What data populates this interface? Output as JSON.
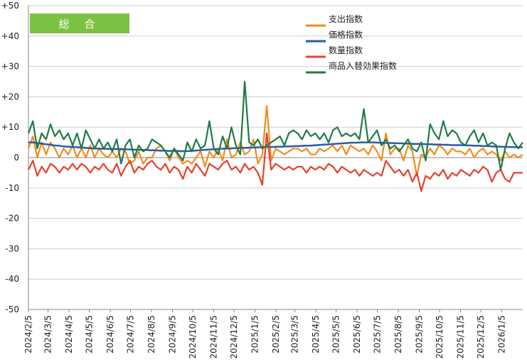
{
  "badge": {
    "label": "総 合",
    "color": "#7cc242"
  },
  "chart_data": {
    "type": "line",
    "title": "",
    "xlabel": "",
    "ylabel": "",
    "ylim": [
      -50,
      50
    ],
    "y_ticks": [
      "+50",
      "+40",
      "+30",
      "+20",
      "+10",
      "0",
      "-10",
      "-20",
      "-30",
      "-40",
      "-50"
    ],
    "x_tick_labels": [
      "2024/2/5",
      "2024/3/5",
      "2024/4/5",
      "2024/5/5",
      "2024/6/5",
      "2024/7/5",
      "2024/8/5",
      "2024/9/5",
      "2024/10/5",
      "2024/11/5",
      "2024/12/5",
      "2025/1/5",
      "2025/2/5",
      "2025/3/5",
      "2025/4/5",
      "2025/5/5",
      "2025/6/5",
      "2025/7/5",
      "2025/8/5",
      "2025/9/5",
      "2025/10/5",
      "2025/11/5",
      "2025/12/5",
      "2026/1/5"
    ],
    "x_start": "2024-02-05",
    "x_end": "2026-02-05",
    "grid": "horizontal",
    "legend_position": "top-right",
    "series": [
      {
        "name": "支出指数",
        "color": "#f28c1e",
        "values": [
          3,
          7,
          0,
          5,
          1,
          5,
          3,
          0,
          3,
          1,
          4,
          0,
          3,
          0,
          4,
          0,
          3,
          1,
          0,
          2,
          0,
          3,
          2,
          -2,
          -1,
          2,
          -2,
          0,
          0,
          3,
          4,
          2,
          -1,
          3,
          0,
          -2,
          -1,
          -2,
          0,
          2,
          -3,
          2,
          0,
          3,
          -1,
          6,
          0,
          1,
          5,
          1,
          2,
          6,
          -2,
          1,
          17,
          -1,
          3,
          2,
          1,
          2,
          3,
          3,
          2,
          3,
          1,
          1,
          3,
          2,
          3,
          4,
          2,
          4,
          1,
          4,
          3,
          2,
          3,
          1,
          4,
          2,
          -1,
          8,
          1,
          3,
          3,
          -1,
          4,
          2,
          -6,
          1,
          0,
          3,
          1,
          4,
          3,
          1,
          3,
          2,
          2,
          1,
          3,
          0,
          2,
          3,
          1,
          2,
          1,
          -1,
          2,
          0,
          1,
          0,
          1
        ]
      },
      {
        "name": "価格指数",
        "color": "#2a5aa8",
        "values": [
          5,
          5,
          4.8,
          4.6,
          4.4,
          4.2,
          4,
          3.9,
          3.7,
          3.6,
          3.5,
          3.4,
          3.3,
          3.2,
          3.1,
          3,
          3,
          2.9,
          2.9,
          2.8,
          2.8,
          2.8,
          2.7,
          2.7,
          2.6,
          2.6,
          2.5,
          2.5,
          2.4,
          2.4,
          2.3,
          2.3,
          2.2,
          2.2,
          2.2,
          2.1,
          2.1,
          2.2,
          2.3,
          2.4,
          2.5,
          2.6,
          2.7,
          2.8,
          2.9,
          3,
          3,
          3.1,
          3.1,
          3.2,
          3.2,
          3.3,
          3.3,
          3.4,
          3.4,
          3.5,
          3.5,
          3.6,
          3.6,
          3.7,
          3.7,
          3.8,
          3.8,
          3.9,
          3.9,
          4,
          4.1,
          4.2,
          4.3,
          4.4,
          4.5,
          4.6,
          4.7,
          4.8,
          4.9,
          4.9,
          5,
          5,
          5,
          5,
          4.9,
          4.9,
          4.8,
          4.8,
          4.7,
          4.7,
          4.6,
          4.6,
          4.5,
          4.5,
          4.5,
          4.4,
          4.4,
          4.3,
          4.3,
          4.2,
          4.2,
          4.1,
          4.1,
          4.1,
          4,
          4,
          3.9,
          3.9,
          3.8,
          3.8,
          3.7,
          3.6,
          3.6,
          3.5,
          3.5,
          3.4,
          3.4,
          3.4
        ]
      },
      {
        "name": "数量指数",
        "color": "#e8402a",
        "values": [
          -4,
          -1,
          -6,
          -3,
          -5,
          -2,
          -3,
          -5,
          -3,
          -4,
          -2,
          -4,
          -2,
          -3,
          -5,
          -3,
          -4,
          -2,
          -4,
          -5,
          -2,
          -6,
          -3,
          -1,
          -5,
          -3,
          -4,
          -2,
          -1,
          -3,
          -4,
          -2,
          -5,
          -3,
          -4,
          -7,
          -3,
          -5,
          -2,
          -4,
          -6,
          -2,
          -3,
          -4,
          -2,
          -1,
          -4,
          -3,
          -5,
          -2,
          -4,
          -3,
          -5,
          -9,
          8,
          -4,
          -2,
          -3,
          -4,
          -3,
          -4,
          -3,
          -3,
          -5,
          -3,
          -4,
          -3,
          -4,
          -2,
          -3,
          -5,
          -3,
          -4,
          -5,
          -4,
          -6,
          -4,
          -5,
          -6,
          -5,
          -6,
          -1,
          -3,
          -5,
          -4,
          -6,
          -4,
          -8,
          -5,
          -11,
          -6,
          -7,
          -5,
          -6,
          -4,
          -7,
          -5,
          -6,
          -4,
          -5,
          -6,
          -4,
          -5,
          -3,
          -4,
          -8,
          -5,
          -4,
          -7,
          -8,
          -5,
          -5,
          -5
        ]
      },
      {
        "name": "商品入替効果指数",
        "color": "#1e7b45",
        "values": [
          8,
          12,
          3,
          8,
          6,
          11,
          7,
          9,
          6,
          8,
          4,
          8,
          3,
          9,
          6,
          3,
          6,
          3,
          5,
          2,
          6,
          -2,
          4,
          6,
          0,
          4,
          2,
          3,
          6,
          5,
          4,
          2,
          0,
          3,
          1,
          -1,
          5,
          2,
          6,
          3,
          4,
          12,
          3,
          1,
          7,
          3,
          10,
          4,
          1,
          25,
          5,
          4,
          6,
          3,
          4,
          5,
          6,
          7,
          4,
          8,
          9,
          8,
          6,
          9,
          7,
          8,
          6,
          8,
          5,
          9,
          10,
          7,
          8,
          7,
          8,
          6,
          16,
          5,
          7,
          9,
          4,
          6,
          3,
          4,
          2,
          4,
          6,
          3,
          2,
          5,
          -1,
          11,
          8,
          6,
          12,
          7,
          9,
          8,
          5,
          4,
          7,
          9,
          5,
          8,
          4,
          5,
          4,
          -4,
          3,
          8,
          5,
          3,
          5
        ]
      }
    ]
  }
}
